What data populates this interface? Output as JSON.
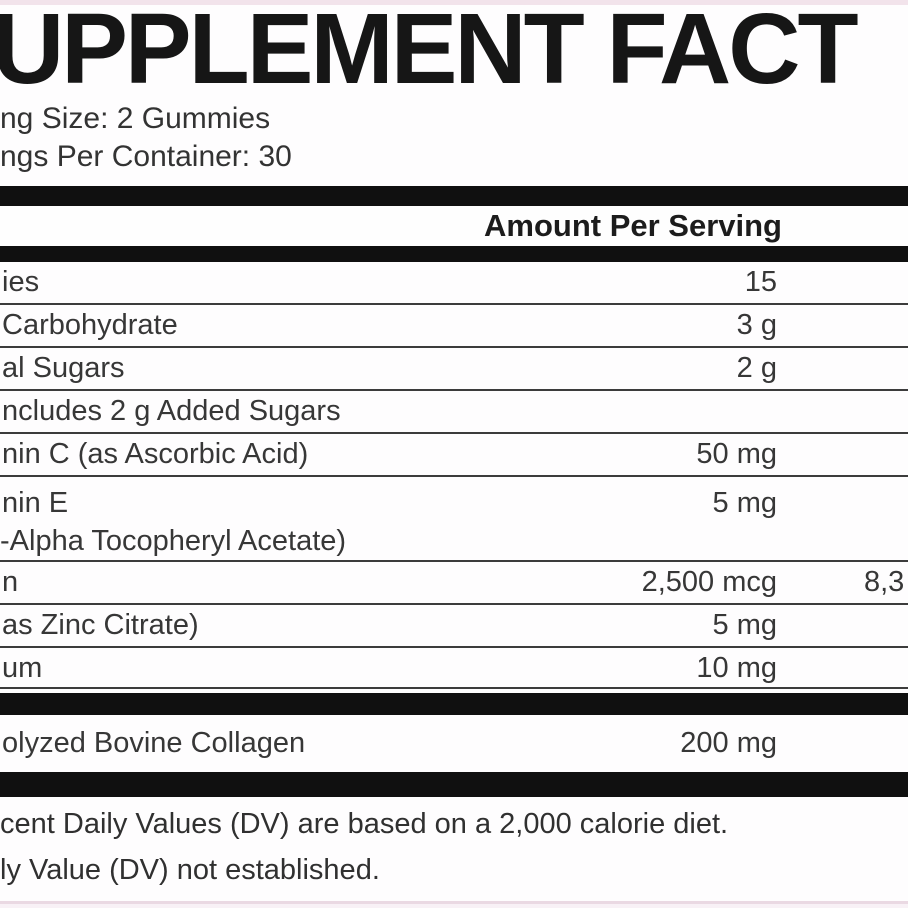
{
  "label": {
    "title_fragment": "UPPLEMENT FACT",
    "serving_size_fragment": "ng Size: 2 Gummies",
    "servings_per_container_fragment": "ngs Per Container: 30",
    "header": {
      "amount_per_serving": "Amount Per Serving"
    },
    "rows": [
      {
        "name": "ies",
        "amount": "15",
        "dv": ""
      },
      {
        "name": "Carbohydrate",
        "amount": "3 g",
        "dv": ""
      },
      {
        "name": "al Sugars",
        "amount": "2 g",
        "dv": ""
      },
      {
        "name": "ncludes 2 g Added Sugars",
        "amount": "",
        "dv": ""
      },
      {
        "name": "nin C (as Ascorbic Acid)",
        "amount": "50 mg",
        "dv": ""
      },
      {
        "name": "nin E",
        "name_line2": "-Alpha Tocopheryl Acetate)",
        "amount": "5 mg",
        "dv": ""
      },
      {
        "name": "n",
        "amount": "2,500 mcg",
        "dv": "8,3"
      },
      {
        "name": "as Zinc Citrate)",
        "amount": "5 mg",
        "dv": ""
      },
      {
        "name": "um",
        "amount": "10 mg",
        "dv": ""
      },
      {
        "name": "olyzed Bovine Collagen",
        "amount": "200 mg",
        "dv": ""
      }
    ],
    "footnotes": [
      "cent Daily Values (DV) are based on a 2,000 calorie diet.",
      "ly Value (DV) not established."
    ],
    "colors": {
      "bar_black": "#101010",
      "separator_gray": "#3c3c3c",
      "background_pink": "#f2e3eb",
      "text_dark": "#373737"
    }
  }
}
